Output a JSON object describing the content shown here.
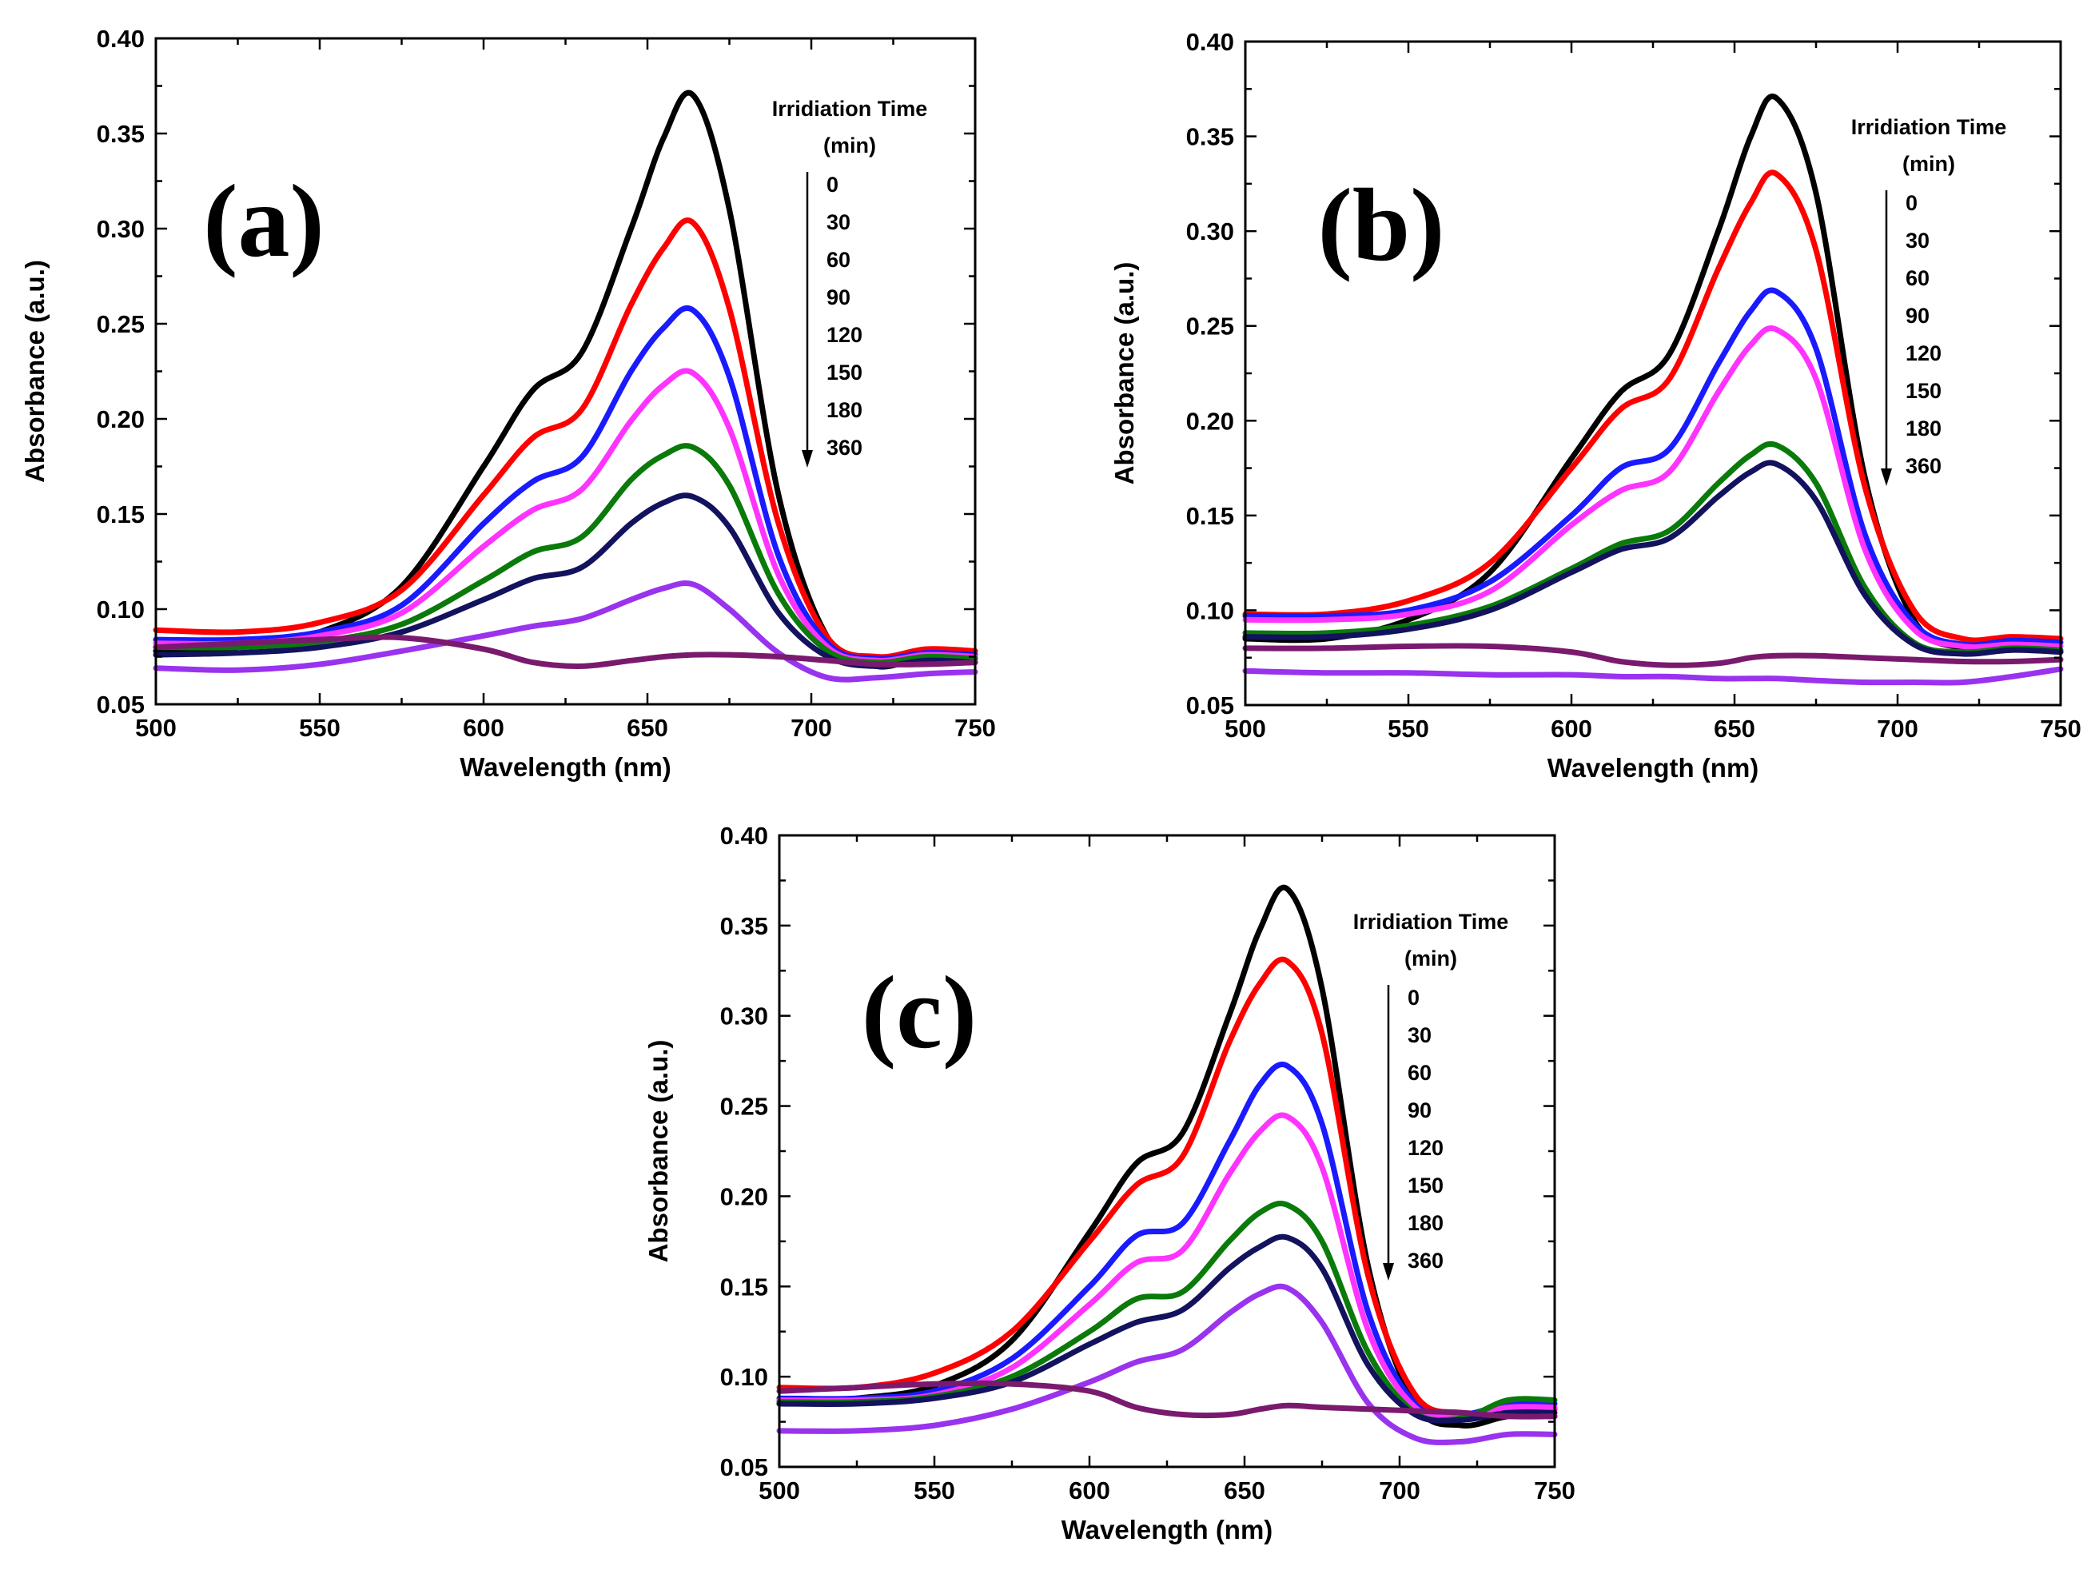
{
  "colors": {
    "t0": "#000000",
    "t30": "#ff0000",
    "t60": "#1a1aff",
    "t90": "#ff33ff",
    "t120": "#0a7a0a",
    "t150": "#12125e",
    "t180": "#9933ee",
    "t360": "#7a1a6e"
  },
  "chart_data": [
    {
      "type": "line",
      "panel_label": "(a)",
      "xlabel": "Wavelength (nm)",
      "ylabel": "Absorbance (a.u.)",
      "xlim": [
        500,
        750
      ],
      "ylim": [
        0.05,
        0.4
      ],
      "xticks": [
        "500",
        "550",
        "600",
        "650",
        "700",
        "750"
      ],
      "yticks": [
        "0.05",
        "0.10",
        "0.15",
        "0.20",
        "0.25",
        "0.30",
        "0.35",
        "0.40"
      ],
      "legend_title": "Irridiation Time",
      "legend_unit": "(min)",
      "legend_entries": [
        "0",
        "30",
        "60",
        "90",
        "120",
        "150",
        "180",
        "360"
      ],
      "x": [
        500,
        525,
        550,
        575,
        600,
        615,
        630,
        645,
        655,
        664,
        675,
        690,
        705,
        720,
        735,
        750
      ],
      "series": [
        {
          "name": "0",
          "color_key": "t0",
          "values": [
            0.078,
            0.08,
            0.088,
            0.112,
            0.175,
            0.215,
            0.235,
            0.3,
            0.348,
            0.37,
            0.31,
            0.16,
            0.085,
            0.07,
            0.075,
            0.074
          ]
        },
        {
          "name": "30",
          "color_key": "t30",
          "values": [
            0.089,
            0.088,
            0.093,
            0.11,
            0.16,
            0.19,
            0.205,
            0.26,
            0.29,
            0.303,
            0.258,
            0.145,
            0.085,
            0.075,
            0.079,
            0.078
          ]
        },
        {
          "name": "60",
          "color_key": "t60",
          "values": [
            0.084,
            0.084,
            0.088,
            0.102,
            0.145,
            0.167,
            0.18,
            0.225,
            0.248,
            0.257,
            0.222,
            0.128,
            0.082,
            0.074,
            0.077,
            0.076
          ]
        },
        {
          "name": "90",
          "color_key": "t90",
          "values": [
            0.082,
            0.082,
            0.086,
            0.098,
            0.133,
            0.152,
            0.163,
            0.199,
            0.218,
            0.224,
            0.195,
            0.118,
            0.08,
            0.073,
            0.076,
            0.075
          ]
        },
        {
          "name": "120",
          "color_key": "t120",
          "values": [
            0.08,
            0.08,
            0.083,
            0.092,
            0.115,
            0.13,
            0.138,
            0.168,
            0.181,
            0.185,
            0.165,
            0.108,
            0.078,
            0.072,
            0.075,
            0.074
          ]
        },
        {
          "name": "150",
          "color_key": "t150",
          "values": [
            0.076,
            0.077,
            0.08,
            0.088,
            0.105,
            0.116,
            0.122,
            0.145,
            0.156,
            0.159,
            0.143,
            0.098,
            0.075,
            0.07,
            0.073,
            0.072
          ]
        },
        {
          "name": "180",
          "color_key": "t180",
          "values": [
            0.069,
            0.068,
            0.071,
            0.078,
            0.086,
            0.091,
            0.095,
            0.105,
            0.111,
            0.113,
            0.1,
            0.077,
            0.064,
            0.064,
            0.066,
            0.067
          ]
        },
        {
          "name": "360",
          "color_key": "t360",
          "values": [
            0.08,
            0.082,
            0.084,
            0.085,
            0.079,
            0.072,
            0.07,
            0.073,
            0.075,
            0.076,
            0.076,
            0.075,
            0.073,
            0.071,
            0.071,
            0.072
          ]
        }
      ]
    },
    {
      "type": "line",
      "panel_label": "(b)",
      "xlabel": "Wavelength (nm)",
      "ylabel": "Absorbance (a.u.)",
      "xlim": [
        500,
        750
      ],
      "ylim": [
        0.05,
        0.4
      ],
      "xticks": [
        "500",
        "550",
        "600",
        "650",
        "700",
        "750"
      ],
      "yticks": [
        "0.05",
        "0.10",
        "0.15",
        "0.20",
        "0.25",
        "0.30",
        "0.35",
        "0.40"
      ],
      "legend_title": "Irridiation Time",
      "legend_unit": "(min)",
      "legend_entries": [
        "0",
        "30",
        "60",
        "90",
        "120",
        "150",
        "180",
        "360"
      ],
      "x": [
        500,
        525,
        550,
        575,
        600,
        615,
        630,
        645,
        655,
        663,
        675,
        690,
        705,
        720,
        735,
        750
      ],
      "series": [
        {
          "name": "0",
          "color_key": "t0",
          "values": [
            0.085,
            0.085,
            0.095,
            0.12,
            0.18,
            0.215,
            0.235,
            0.3,
            0.35,
            0.37,
            0.32,
            0.17,
            0.095,
            0.08,
            0.08,
            0.078
          ]
        },
        {
          "name": "30",
          "color_key": "t30",
          "values": [
            0.098,
            0.098,
            0.105,
            0.125,
            0.175,
            0.206,
            0.222,
            0.28,
            0.315,
            0.33,
            0.29,
            0.165,
            0.1,
            0.085,
            0.086,
            0.085
          ]
        },
        {
          "name": "60",
          "color_key": "t60",
          "values": [
            0.097,
            0.097,
            0.1,
            0.115,
            0.15,
            0.175,
            0.185,
            0.23,
            0.258,
            0.268,
            0.238,
            0.14,
            0.093,
            0.082,
            0.084,
            0.083
          ]
        },
        {
          "name": "90",
          "color_key": "t90",
          "values": [
            0.095,
            0.095,
            0.098,
            0.11,
            0.145,
            0.163,
            0.173,
            0.215,
            0.24,
            0.248,
            0.222,
            0.132,
            0.09,
            0.081,
            0.082,
            0.081
          ]
        },
        {
          "name": "120",
          "color_key": "t120",
          "values": [
            0.088,
            0.088,
            0.092,
            0.102,
            0.122,
            0.135,
            0.142,
            0.167,
            0.182,
            0.187,
            0.167,
            0.112,
            0.083,
            0.078,
            0.08,
            0.079
          ]
        },
        {
          "name": "150",
          "color_key": "t150",
          "values": [
            0.086,
            0.086,
            0.09,
            0.1,
            0.12,
            0.132,
            0.138,
            0.16,
            0.173,
            0.177,
            0.158,
            0.108,
            0.082,
            0.077,
            0.079,
            0.078
          ]
        },
        {
          "name": "180",
          "color_key": "t180",
          "values": [
            0.068,
            0.067,
            0.067,
            0.066,
            0.066,
            0.065,
            0.065,
            0.064,
            0.064,
            0.064,
            0.063,
            0.062,
            0.062,
            0.062,
            0.065,
            0.069
          ]
        },
        {
          "name": "360",
          "color_key": "t360",
          "values": [
            0.08,
            0.08,
            0.081,
            0.081,
            0.078,
            0.073,
            0.071,
            0.072,
            0.075,
            0.076,
            0.076,
            0.075,
            0.074,
            0.073,
            0.073,
            0.074
          ]
        }
      ]
    },
    {
      "type": "line",
      "panel_label": "(c)",
      "xlabel": "Wavelength (nm)",
      "ylabel": "Absorbance (a.u.)",
      "xlim": [
        500,
        750
      ],
      "ylim": [
        0.05,
        0.4
      ],
      "xticks": [
        "500",
        "550",
        "600",
        "650",
        "700",
        "750"
      ],
      "yticks": [
        "0.05",
        "0.10",
        "0.15",
        "0.20",
        "0.25",
        "0.30",
        "0.35",
        "0.40"
      ],
      "legend_title": "Irridiation Time",
      "legend_unit": "(min)",
      "legend_entries": [
        "0",
        "30",
        "60",
        "90",
        "120",
        "150",
        "180",
        "360"
      ],
      "x": [
        500,
        525,
        550,
        575,
        600,
        615,
        630,
        645,
        655,
        664,
        675,
        690,
        705,
        720,
        735,
        750
      ],
      "series": [
        {
          "name": "0",
          "color_key": "t0",
          "values": [
            0.085,
            0.088,
            0.095,
            0.12,
            0.18,
            0.218,
            0.235,
            0.3,
            0.348,
            0.37,
            0.315,
            0.16,
            0.085,
            0.073,
            0.078,
            0.078
          ]
        },
        {
          "name": "30",
          "color_key": "t30",
          "values": [
            0.094,
            0.094,
            0.102,
            0.125,
            0.175,
            0.206,
            0.222,
            0.285,
            0.318,
            0.33,
            0.29,
            0.155,
            0.09,
            0.08,
            0.082,
            0.082
          ]
        },
        {
          "name": "60",
          "color_key": "t60",
          "values": [
            0.088,
            0.088,
            0.092,
            0.11,
            0.15,
            0.178,
            0.185,
            0.23,
            0.262,
            0.272,
            0.24,
            0.135,
            0.085,
            0.079,
            0.085,
            0.085
          ]
        },
        {
          "name": "90",
          "color_key": "t90",
          "values": [
            0.087,
            0.087,
            0.09,
            0.105,
            0.14,
            0.163,
            0.17,
            0.212,
            0.236,
            0.244,
            0.216,
            0.125,
            0.083,
            0.078,
            0.083,
            0.083
          ]
        },
        {
          "name": "120",
          "color_key": "t120",
          "values": [
            0.086,
            0.086,
            0.089,
            0.1,
            0.125,
            0.143,
            0.147,
            0.175,
            0.191,
            0.195,
            0.175,
            0.113,
            0.08,
            0.077,
            0.087,
            0.087
          ]
        },
        {
          "name": "150",
          "color_key": "t150",
          "values": [
            0.085,
            0.085,
            0.088,
            0.097,
            0.118,
            0.13,
            0.137,
            0.16,
            0.172,
            0.177,
            0.16,
            0.106,
            0.079,
            0.076,
            0.08,
            0.08
          ]
        },
        {
          "name": "180",
          "color_key": "t180",
          "values": [
            0.07,
            0.07,
            0.073,
            0.082,
            0.097,
            0.108,
            0.115,
            0.135,
            0.146,
            0.149,
            0.13,
            0.085,
            0.066,
            0.064,
            0.068,
            0.068
          ]
        },
        {
          "name": "360",
          "color_key": "t360",
          "values": [
            0.092,
            0.094,
            0.096,
            0.096,
            0.092,
            0.083,
            0.079,
            0.079,
            0.082,
            0.084,
            0.083,
            0.082,
            0.081,
            0.08,
            0.078,
            0.078
          ]
        }
      ]
    }
  ]
}
